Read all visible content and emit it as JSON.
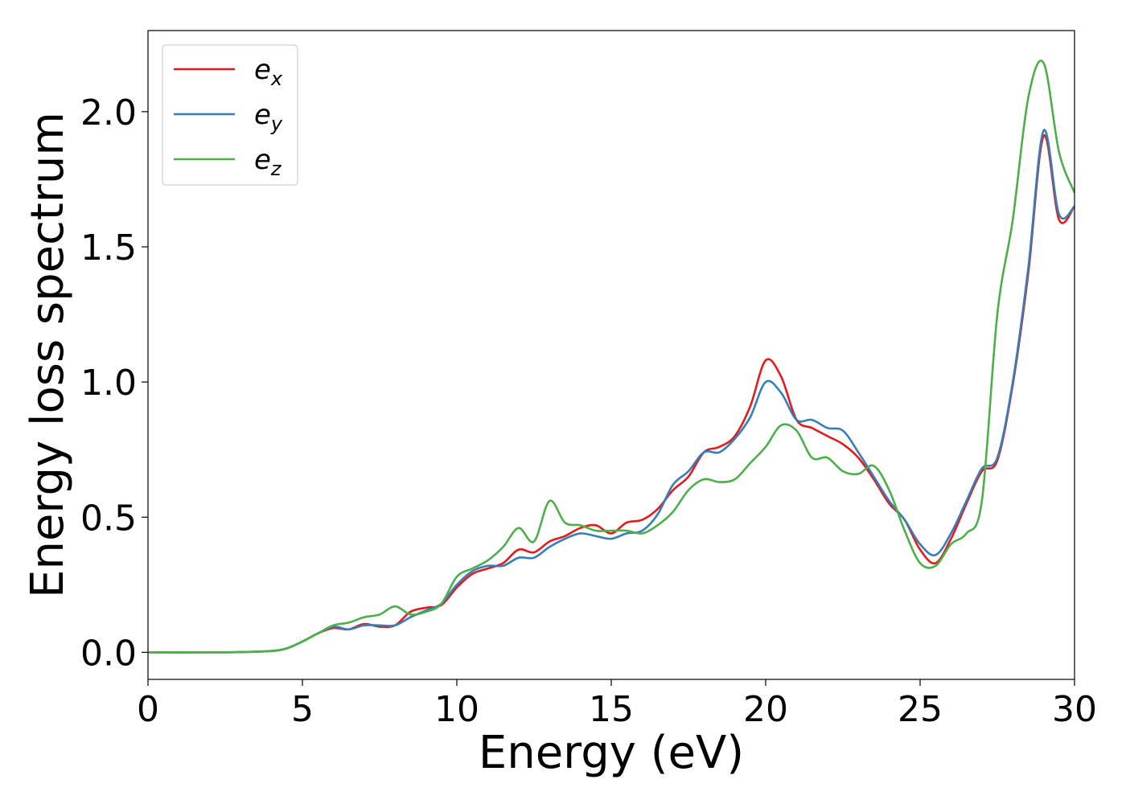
{
  "chart_data": {
    "type": "line",
    "title": "",
    "xlabel": "Energy (eV)",
    "ylabel": "Energy loss spectrum",
    "xlim": [
      0,
      30
    ],
    "ylim": [
      -0.1,
      2.3
    ],
    "xticks": [
      0,
      5,
      10,
      15,
      20,
      25,
      30
    ],
    "xtick_labels": [
      "0",
      "5",
      "10",
      "15",
      "20",
      "25",
      "30"
    ],
    "yticks": [
      0.0,
      0.5,
      1.0,
      1.5,
      2.0
    ],
    "ytick_labels": [
      "0.0",
      "0.5",
      "1.0",
      "1.5",
      "2.0"
    ],
    "grid": false,
    "legend_position": "top-left",
    "series": [
      {
        "name": "e_x",
        "legend_base": "e",
        "legend_sub": "x",
        "color": "#e41a1c",
        "x": [
          0,
          2,
          3,
          4,
          4.5,
          5,
          5.5,
          6,
          6.5,
          7,
          7.5,
          8,
          8.5,
          9,
          9.5,
          10,
          10.5,
          11,
          11.5,
          12,
          12.5,
          13,
          13.5,
          14,
          14.5,
          15,
          15.5,
          16,
          16.5,
          17,
          17.5,
          18,
          18.5,
          19,
          19.5,
          20,
          20.5,
          21,
          21.5,
          22,
          22.5,
          23,
          23.5,
          24,
          24.5,
          25,
          25.5,
          26,
          26.5,
          27,
          27.5,
          28,
          28.5,
          29,
          29.5,
          30
        ],
        "y": [
          0.0,
          0.0,
          0.001,
          0.005,
          0.015,
          0.04,
          0.07,
          0.09,
          0.085,
          0.105,
          0.095,
          0.1,
          0.15,
          0.165,
          0.175,
          0.24,
          0.29,
          0.31,
          0.33,
          0.38,
          0.37,
          0.41,
          0.43,
          0.46,
          0.47,
          0.44,
          0.48,
          0.49,
          0.53,
          0.6,
          0.65,
          0.74,
          0.76,
          0.8,
          0.91,
          1.08,
          1.02,
          0.86,
          0.83,
          0.8,
          0.77,
          0.72,
          0.64,
          0.55,
          0.49,
          0.38,
          0.33,
          0.42,
          0.55,
          0.67,
          0.71,
          0.99,
          1.4,
          1.91,
          1.6,
          1.65
        ]
      },
      {
        "name": "e_y",
        "legend_base": "e",
        "legend_sub": "y",
        "color": "#377eb8",
        "x": [
          0,
          2,
          3,
          4,
          4.5,
          5,
          5.5,
          6,
          6.5,
          7,
          7.5,
          8,
          8.5,
          9,
          9.5,
          10,
          10.5,
          11,
          11.5,
          12,
          12.5,
          13,
          13.5,
          14,
          14.5,
          15,
          15.5,
          16,
          16.5,
          17,
          17.5,
          18,
          18.5,
          19,
          19.5,
          20,
          20.5,
          21,
          21.5,
          22,
          22.5,
          23,
          23.5,
          24,
          24.5,
          25,
          25.5,
          26,
          26.5,
          27,
          27.5,
          28,
          28.5,
          29,
          29.5,
          30
        ],
        "y": [
          0.0,
          0.0,
          0.001,
          0.005,
          0.015,
          0.04,
          0.07,
          0.095,
          0.085,
          0.1,
          0.1,
          0.1,
          0.13,
          0.155,
          0.18,
          0.25,
          0.3,
          0.32,
          0.32,
          0.35,
          0.35,
          0.39,
          0.42,
          0.44,
          0.43,
          0.42,
          0.44,
          0.45,
          0.51,
          0.62,
          0.67,
          0.74,
          0.74,
          0.79,
          0.87,
          1.0,
          0.96,
          0.86,
          0.86,
          0.83,
          0.82,
          0.74,
          0.65,
          0.56,
          0.49,
          0.4,
          0.36,
          0.44,
          0.56,
          0.68,
          0.72,
          1.0,
          1.42,
          1.93,
          1.62,
          1.65
        ]
      },
      {
        "name": "e_z",
        "legend_base": "e",
        "legend_sub": "z",
        "color": "#4daf4a",
        "x": [
          0,
          2,
          3,
          4,
          4.5,
          5,
          5.5,
          6,
          6.5,
          7,
          7.5,
          8,
          8.5,
          9,
          9.5,
          10,
          10.5,
          11,
          11.5,
          12,
          12.5,
          13,
          13.5,
          14,
          14.5,
          15,
          15.5,
          16,
          16.5,
          17,
          17.5,
          18,
          18.5,
          19,
          19.5,
          20,
          20.5,
          21,
          21.5,
          22,
          22.5,
          23,
          23.5,
          24,
          24.5,
          25,
          25.5,
          26,
          26.5,
          27,
          27.5,
          28,
          28.5,
          29,
          29.5,
          30
        ],
        "y": [
          0.0,
          0.0,
          0.001,
          0.005,
          0.015,
          0.04,
          0.07,
          0.1,
          0.11,
          0.13,
          0.14,
          0.17,
          0.14,
          0.15,
          0.18,
          0.28,
          0.31,
          0.34,
          0.39,
          0.46,
          0.41,
          0.56,
          0.48,
          0.47,
          0.45,
          0.45,
          0.45,
          0.44,
          0.47,
          0.52,
          0.6,
          0.64,
          0.63,
          0.64,
          0.7,
          0.76,
          0.84,
          0.82,
          0.72,
          0.72,
          0.67,
          0.66,
          0.69,
          0.6,
          0.45,
          0.33,
          0.32,
          0.4,
          0.44,
          0.56,
          1.25,
          1.6,
          2.05,
          2.18,
          1.85,
          1.7
        ]
      }
    ]
  }
}
